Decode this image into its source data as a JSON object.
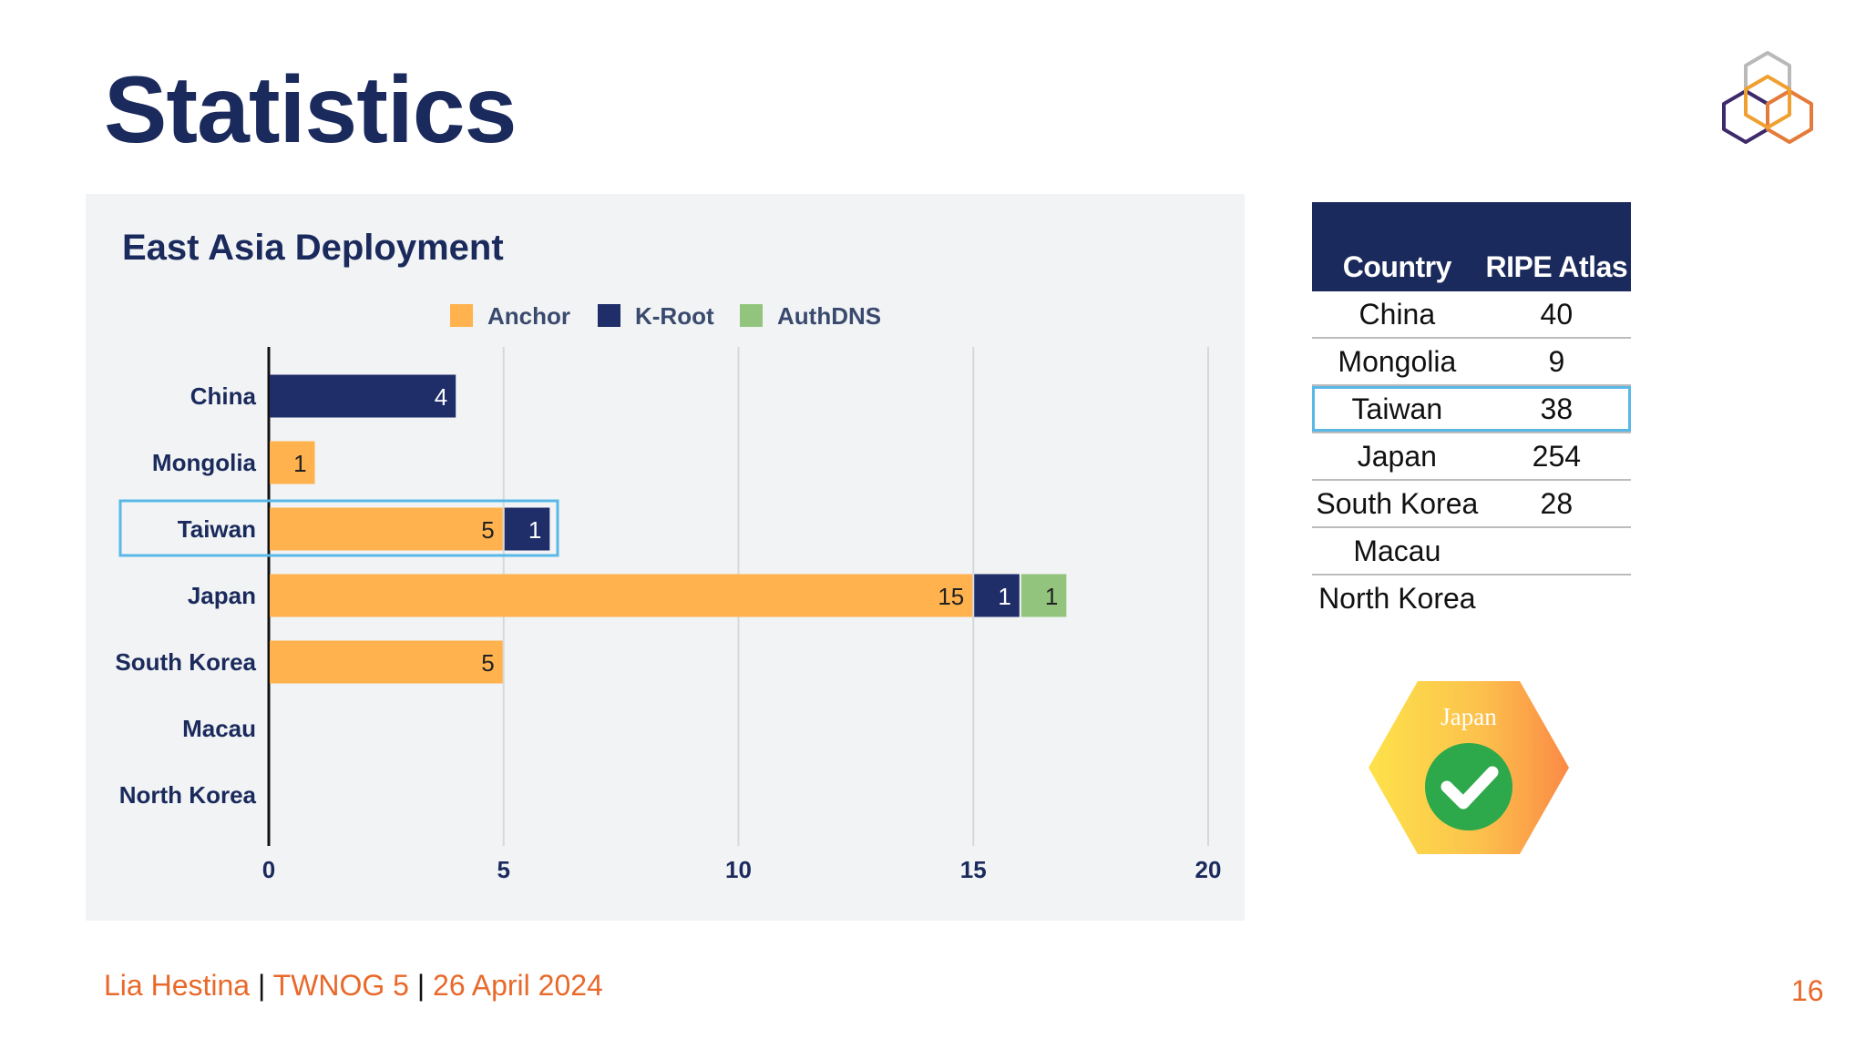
{
  "slide": {
    "title": "Statistics",
    "footer": {
      "author": "Lia Hestina",
      "event": "TWNOG 5",
      "date": "26 April 2024",
      "separator": "|"
    },
    "page_number": "16"
  },
  "colors": {
    "title": "#1b2a5c",
    "anchor": "#ffb24d",
    "kroot": "#1f2d69",
    "authdns": "#93c47d",
    "highlight": "#5ab8e6",
    "footer": "#e8692a"
  },
  "chart_data": {
    "type": "bar",
    "orientation": "horizontal",
    "stacked": true,
    "title": "East Asia Deployment",
    "categories": [
      "China",
      "Mongolia",
      "Taiwan",
      "Japan",
      "South Korea",
      "Macau",
      "North Korea"
    ],
    "series": [
      {
        "name": "Anchor",
        "color": "#ffb24d",
        "values": [
          0,
          1,
          5,
          15,
          5,
          0,
          0
        ]
      },
      {
        "name": "K-Root",
        "color": "#1f2d69",
        "values": [
          4,
          0,
          1,
          1,
          0,
          0,
          0
        ]
      },
      {
        "name": "AuthDNS",
        "color": "#93c47d",
        "values": [
          0,
          0,
          0,
          1,
          0,
          0,
          0
        ]
      }
    ],
    "xlim": [
      0,
      20
    ],
    "xticks": [
      0,
      5,
      10,
      15,
      20
    ],
    "legend": "top",
    "grid": true,
    "highlighted_category": "Taiwan"
  },
  "table": {
    "headers": [
      "Country",
      "RIPE Atlas"
    ],
    "rows": [
      {
        "country": "China",
        "atlas": "40"
      },
      {
        "country": "Mongolia",
        "atlas": "9"
      },
      {
        "country": "Taiwan",
        "atlas": "38",
        "highlight": true
      },
      {
        "country": "Japan",
        "atlas": "254"
      },
      {
        "country": "South Korea",
        "atlas": "28"
      },
      {
        "country": "Macau",
        "atlas": ""
      },
      {
        "country": "North Korea",
        "atlas": ""
      }
    ]
  },
  "badge": {
    "label": "Japan",
    "icon": "check-icon"
  },
  "logo": {
    "icon": "ripe-ncc-hexagon-logo"
  }
}
